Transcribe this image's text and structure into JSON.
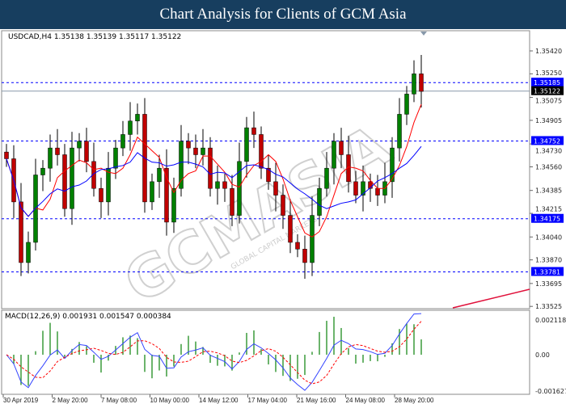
{
  "header": {
    "title": "Chart Analysis for Clients of GCM Asia"
  },
  "chart_info": {
    "symbol_line": "USDCAD,H4  1.35138 1.35139 1.35117 1.35122",
    "macd_line": "MACD(12,26,9) 0.001931 0.001547 0.000384"
  },
  "watermark": "GCMASIA",
  "watermark_sub": "GLOBAL CAPITAL MARKETS",
  "chart_data": {
    "type": "candlestick",
    "symbol": "USDCAD",
    "timeframe": "H4",
    "price_ticks": [
      "1.35420",
      "1.35250",
      "1.35075",
      "1.34905",
      "1.34730",
      "1.34560",
      "1.34385",
      "1.34215",
      "1.34040",
      "1.33870",
      "1.33695",
      "1.33525"
    ],
    "ylim": [
      1.335,
      1.3556
    ],
    "levels": [
      {
        "value": "1.35185",
        "color": "#0000ff"
      },
      {
        "value": "1.34752",
        "color": "#0000ff"
      },
      {
        "value": "1.34175",
        "color": "#0000ff"
      },
      {
        "value": "1.33781",
        "color": "#0000ff"
      }
    ],
    "current_price": "1.35122",
    "x_ticks": [
      "30 Apr 2019",
      "2 May 20:00",
      "7 May 08:00",
      "10 May 00:00",
      "14 May 12:00",
      "17 May 04:00",
      "21 May 16:00",
      "24 May 08:00",
      "28 May 20:00"
    ],
    "closes": [
      1.3462,
      1.343,
      1.3385,
      1.34,
      1.345,
      1.3455,
      1.347,
      1.3465,
      1.3425,
      1.347,
      1.3475,
      1.346,
      1.344,
      1.343,
      1.3455,
      1.347,
      1.348,
      1.349,
      1.3495,
      1.343,
      1.3445,
      1.3455,
      1.3415,
      1.344,
      1.3475,
      1.347,
      1.3465,
      1.347,
      1.344,
      1.3445,
      1.344,
      1.342,
      1.346,
      1.3485,
      1.348,
      1.3455,
      1.3445,
      1.3435,
      1.342,
      1.34,
      1.3395,
      1.3385,
      1.342,
      1.344,
      1.3455,
      1.3475,
      1.3465,
      1.3445,
      1.3435,
      1.3445,
      1.344,
      1.3435,
      1.3445,
      1.347,
      1.3495,
      1.351,
      1.3525,
      1.3512
    ],
    "macd_ticks": [
      "0.002118",
      "0.00",
      "-0.001627"
    ],
    "macd_range": [
      -0.001627,
      0.002118
    ],
    "colors": {
      "bull": "#008000",
      "bear": "#c00000",
      "ma_fast": "#ff0000",
      "ma_slow": "#0000ff",
      "histogram": "#3a9a3a",
      "signal": "#ff0000",
      "trendline": "#e0103a"
    }
  }
}
